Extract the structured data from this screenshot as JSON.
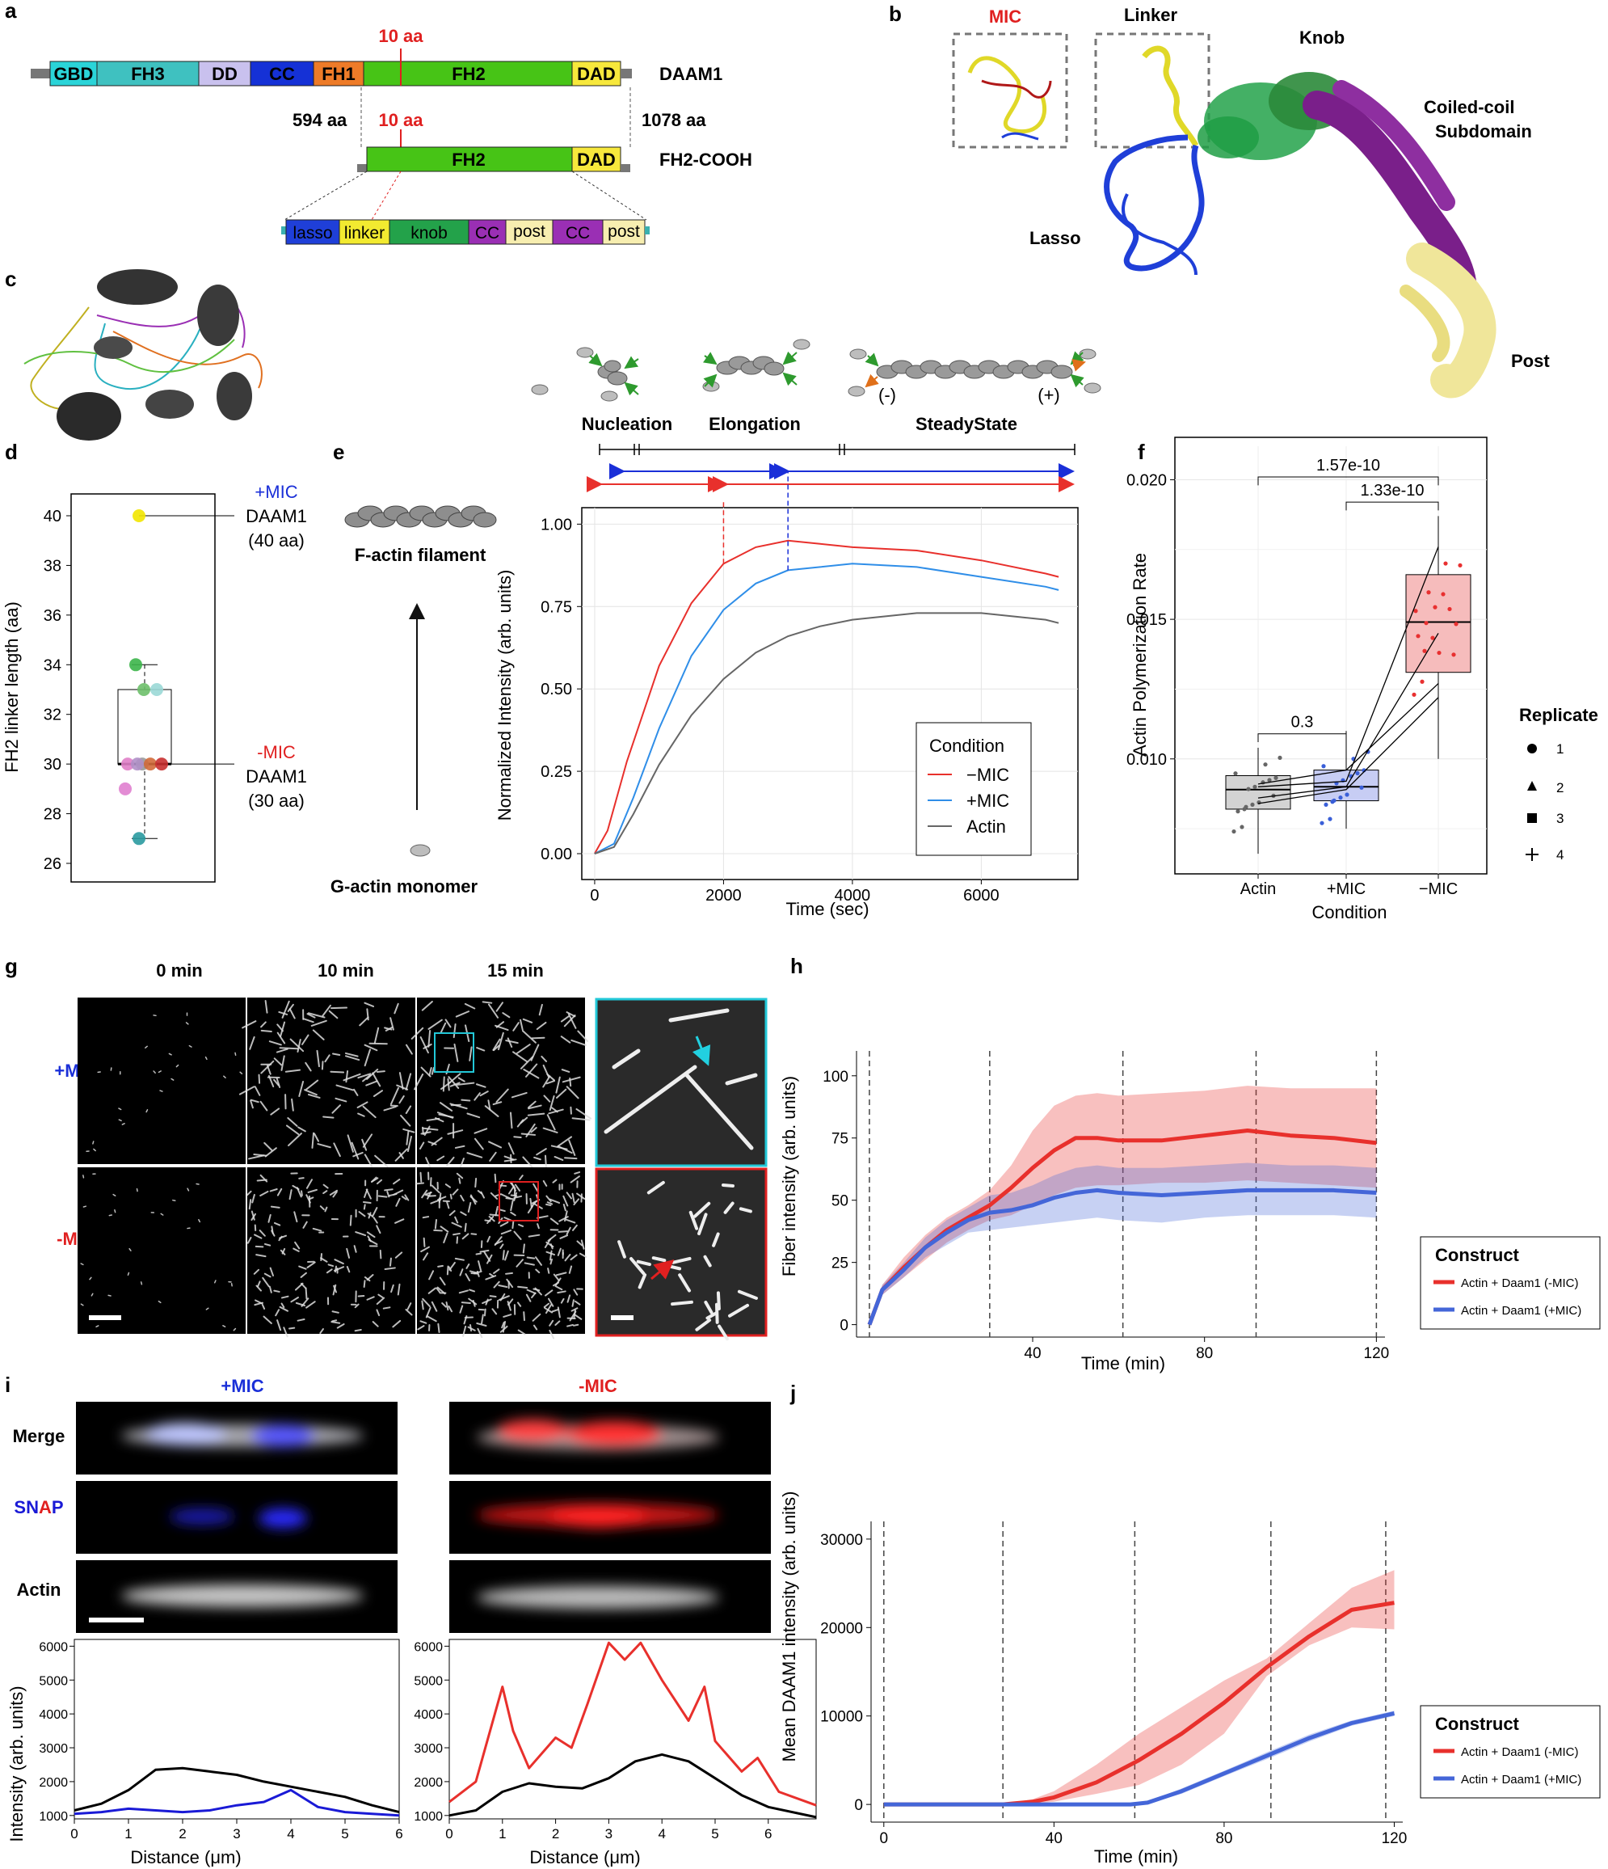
{
  "panel_labels": {
    "a": "a",
    "b": "b",
    "c": "c",
    "d": "d",
    "e": "e",
    "f": "f",
    "g": "g",
    "h": "h",
    "i": "i",
    "j": "j"
  },
  "panel_a": {
    "domains": [
      "GBD",
      "FH3",
      "DD",
      "CC",
      "FH1",
      "FH2",
      "DAD"
    ],
    "construct_full": "DAAM1",
    "construct_fh2": "FH2-COOH",
    "start_aa": "594 aa",
    "end_aa": "1078 aa",
    "insert_label": "10 aa",
    "fh2_domains": [
      "FH2",
      "DAD"
    ],
    "sub_domains": [
      "lasso",
      "linker",
      "knob",
      "CC",
      "post",
      "CC",
      "post"
    ],
    "colors": {
      "GBD": "#2ad4d8",
      "FH3": "#3fc1c0",
      "DD": "#c9c1ee",
      "CC_blue": "#1531d6",
      "FH1": "#ee7b28",
      "FH2": "#47c416",
      "DAD": "#f7e83c",
      "lasso": "#1f3fd8",
      "linker": "#f2ea30",
      "knob": "#23a24a",
      "CC_purple": "#9a2fb4",
      "post": "#f7eeb0",
      "insert": "#e02020"
    }
  },
  "panel_b": {
    "labels": {
      "mic": "MIC",
      "linker": "Linker",
      "knob": "Knob",
      "coiled": "Coiled-coil",
      "subdomain": "Subdomain",
      "lasso": "Lasso",
      "post": "Post"
    }
  },
  "panel_d": {
    "ylabel": "FH2 linker length (aa)",
    "yticks": [
      "26",
      "28",
      "30",
      "32",
      "34",
      "36",
      "38",
      "40"
    ],
    "plus_mic": "+MIC",
    "minus_mic": "-MIC",
    "daam": "DAAM1",
    "len40": "(40 aa)",
    "len30": "(30 aa)"
  },
  "panel_e": {
    "stages": [
      "Nucleation",
      "Elongation",
      "SteadyState"
    ],
    "f_actin": "F-actin filament",
    "g_actin": "G-actin monomer",
    "minus_end": "(-)",
    "plus_end": "(+)",
    "ylabel": "Normalized Intensity (arb. units)",
    "xlabel": "Time (sec)",
    "yticks": [
      "0.00",
      "0.25",
      "0.50",
      "0.75",
      "1.00"
    ],
    "xticks": [
      "0",
      "2000",
      "4000",
      "6000"
    ],
    "legend_title": "Condition",
    "legend": [
      "−MIC",
      "+MIC",
      "Actin"
    ]
  },
  "panel_f": {
    "ylabel": "Actin Polymerization Rate",
    "xlabel": "Condition",
    "categories": [
      "Actin",
      "+MIC",
      "−MIC"
    ],
    "yticks": [
      "0.010",
      "0.015",
      "0.020"
    ],
    "pvals": [
      "1.57e-10",
      "1.33e-10",
      "0.3"
    ],
    "legend_title": "Replicate",
    "replicates": [
      "1",
      "2",
      "3",
      "4"
    ]
  },
  "panel_g": {
    "cols": [
      "0 min",
      "10 min",
      "15 min"
    ],
    "rows": [
      "+MIC",
      "-MIC"
    ]
  },
  "panel_h": {
    "ylabel": "Fiber intensity (arb. units)",
    "xlabel": "Time (min)",
    "yticks": [
      "0",
      "25",
      "50",
      "75",
      "100"
    ],
    "xticks": [
      "40",
      "80",
      "120"
    ],
    "legend_title": "Construct",
    "legend": [
      "Actin + Daam1 (-MIC)",
      "Actin + Daam1 (+MIC)"
    ]
  },
  "panel_i": {
    "cols": [
      "+MIC",
      "-MIC"
    ],
    "rows": [
      "Merge",
      "SNAP",
      "Actin"
    ],
    "ylabel": "Intensity (arb. units)",
    "xlabel": "Distance (μm)",
    "yticks": [
      "1000",
      "2000",
      "3000",
      "4000",
      "5000",
      "6000"
    ],
    "xticks_left": [
      "0",
      "1",
      "2",
      "3",
      "4",
      "5",
      "6"
    ],
    "xticks_right": [
      "0",
      "1",
      "2",
      "3",
      "4",
      "5",
      "6"
    ]
  },
  "panel_j": {
    "ylabel": "Mean DAAM1 intensity (arb. units)",
    "xlabel": "Time (min)",
    "yticks": [
      "0",
      "10000",
      "20000",
      "30000"
    ],
    "xticks": [
      "0",
      "40",
      "80",
      "120"
    ],
    "legend_title": "Construct",
    "legend": [
      "Actin + Daam1 (-MIC)",
      "Actin + Daam1 (+MIC)"
    ]
  },
  "chart_data": [
    {
      "type": "line",
      "panel": "e",
      "xlabel": "Time (sec)",
      "ylabel": "Normalized Intensity (arb. units)",
      "ylim": [
        0,
        1.05
      ],
      "xlim": [
        -200,
        7500
      ],
      "series": [
        {
          "name": "−MIC",
          "color": "#e8302c",
          "x": [
            0,
            200,
            500,
            1000,
            1500,
            2000,
            2500,
            3000,
            3500,
            4000,
            5000,
            6000,
            7000,
            7200
          ],
          "values": [
            0,
            0.07,
            0.28,
            0.57,
            0.76,
            0.88,
            0.93,
            0.95,
            0.94,
            0.93,
            0.92,
            0.89,
            0.85,
            0.84
          ]
        },
        {
          "name": "+MIC",
          "color": "#2f8ee8",
          "x": [
            0,
            300,
            600,
            1000,
            1500,
            2000,
            2500,
            3000,
            3500,
            4000,
            5000,
            6000,
            7000,
            7200
          ],
          "values": [
            0,
            0.03,
            0.17,
            0.38,
            0.6,
            0.74,
            0.82,
            0.86,
            0.87,
            0.88,
            0.87,
            0.84,
            0.81,
            0.8
          ]
        },
        {
          "name": "Actin",
          "color": "#666666",
          "x": [
            0,
            300,
            600,
            1000,
            1500,
            2000,
            2500,
            3000,
            3500,
            4000,
            5000,
            6000,
            7000,
            7200
          ],
          "values": [
            0,
            0.02,
            0.12,
            0.27,
            0.42,
            0.53,
            0.61,
            0.66,
            0.69,
            0.71,
            0.73,
            0.73,
            0.71,
            0.7
          ]
        }
      ]
    },
    {
      "type": "line",
      "panel": "h",
      "xlabel": "Time (min)",
      "ylabel": "Fiber intensity (arb. units)",
      "ylim": [
        -5,
        110
      ],
      "xlim": [
        -1,
        122
      ],
      "series": [
        {
          "name": "Actin + Daam1 (-MIC)",
          "color": "#e8302c",
          "x": [
            2,
            5,
            10,
            15,
            20,
            25,
            30,
            35,
            40,
            45,
            50,
            55,
            60,
            70,
            80,
            90,
            100,
            110,
            120
          ],
          "values": [
            0,
            14,
            23,
            31,
            38,
            43,
            48,
            55,
            63,
            70,
            75,
            75,
            74,
            74,
            76,
            78,
            76,
            75,
            73
          ],
          "lower": [
            0,
            12,
            19,
            26,
            33,
            38,
            42,
            44,
            48,
            52,
            55,
            56,
            56,
            57,
            57,
            58,
            57,
            56,
            55
          ],
          "upper": [
            0,
            16,
            27,
            36,
            43,
            48,
            54,
            64,
            78,
            88,
            92,
            93,
            92,
            93,
            94,
            96,
            95,
            95,
            95
          ]
        },
        {
          "name": "Actin + Daam1 (+MIC)",
          "color": "#4466d8",
          "x": [
            2,
            5,
            10,
            15,
            20,
            25,
            30,
            35,
            40,
            45,
            50,
            55,
            60,
            70,
            80,
            90,
            100,
            110,
            120
          ],
          "values": [
            0,
            14,
            22,
            31,
            37,
            42,
            45,
            46,
            48,
            51,
            53,
            54,
            53,
            52,
            53,
            54,
            54,
            54,
            53
          ],
          "lower": [
            0,
            12,
            19,
            27,
            32,
            37,
            38,
            39,
            40,
            41,
            42,
            43,
            42,
            41,
            43,
            44,
            44,
            44,
            43
          ],
          "upper": [
            0,
            16,
            25,
            35,
            42,
            47,
            52,
            53,
            56,
            60,
            63,
            64,
            63,
            63,
            64,
            65,
            64,
            64,
            63
          ]
        }
      ]
    },
    {
      "type": "line",
      "panel": "j",
      "xlabel": "Time (min)",
      "ylabel": "Mean DAAM1 intensity (arb. units)",
      "ylim": [
        -2000,
        32000
      ],
      "xlim": [
        -3,
        122
      ],
      "series": [
        {
          "name": "Actin + Daam1 (-MIC)",
          "color": "#e8302c",
          "x": [
            0,
            28,
            35,
            40,
            50,
            60,
            70,
            80,
            90,
            100,
            110,
            120
          ],
          "values": [
            0,
            0,
            300,
            800,
            2500,
            5000,
            8000,
            11500,
            15500,
            19000,
            22000,
            22800
          ],
          "lower": [
            0,
            0,
            100,
            300,
            1200,
            2200,
            4500,
            8000,
            14500,
            18000,
            20000,
            19800
          ],
          "upper": [
            0,
            0,
            600,
            1500,
            4500,
            8000,
            11000,
            14000,
            16500,
            20500,
            24500,
            26500
          ]
        },
        {
          "name": "Actin + Daam1 (+MIC)",
          "color": "#4466d8",
          "x": [
            0,
            58,
            62,
            70,
            80,
            90,
            100,
            110,
            120
          ],
          "values": [
            0,
            0,
            200,
            1500,
            3500,
            5500,
            7500,
            9200,
            10300
          ],
          "lower": [
            0,
            0,
            100,
            1200,
            3200,
            5100,
            7100,
            8900,
            10000
          ],
          "upper": [
            0,
            0,
            300,
            1800,
            3800,
            5900,
            7900,
            9500,
            10600
          ]
        }
      ]
    },
    {
      "type": "line",
      "panel": "i-left",
      "xlabel": "Distance (μm)",
      "ylabel": "Intensity (arb. units)",
      "ylim": [
        900,
        6200
      ],
      "xlim": [
        0,
        6
      ],
      "series": [
        {
          "name": "",
          "color": "#000000",
          "x": [
            0,
            0.5,
            1,
            1.5,
            2,
            2.5,
            3,
            3.5,
            4,
            4.5,
            5,
            5.5,
            6
          ],
          "values": [
            1150,
            1350,
            1750,
            2350,
            2400,
            2300,
            2200,
            2000,
            1850,
            1700,
            1550,
            1300,
            1100
          ]
        },
        {
          "name": "",
          "color": "#1a1ad6",
          "x": [
            0,
            0.5,
            1,
            1.5,
            2,
            2.5,
            3,
            3.5,
            4,
            4.5,
            5,
            5.5,
            6
          ],
          "values": [
            1050,
            1100,
            1200,
            1150,
            1100,
            1150,
            1300,
            1400,
            1750,
            1250,
            1100,
            1050,
            1000
          ]
        }
      ]
    },
    {
      "type": "line",
      "panel": "i-right",
      "xlabel": "Distance (μm)",
      "ylabel": "",
      "ylim": [
        900,
        6200
      ],
      "xlim": [
        0,
        6.9
      ],
      "series": [
        {
          "name": "",
          "color": "#e8302c",
          "x": [
            0,
            0.5,
            1,
            1.2,
            1.5,
            2,
            2.3,
            2.6,
            3,
            3.3,
            3.6,
            4,
            4.5,
            4.8,
            5,
            5.5,
            5.8,
            6.2,
            6.9
          ],
          "values": [
            1400,
            2000,
            4800,
            3500,
            2400,
            3300,
            3000,
            4300,
            6100,
            5600,
            6100,
            5000,
            3800,
            4800,
            3200,
            2300,
            2700,
            1700,
            1300
          ]
        },
        {
          "name": "",
          "color": "#000000",
          "x": [
            0,
            0.5,
            1,
            1.5,
            2,
            2.5,
            3,
            3.5,
            4,
            4.5,
            5,
            5.5,
            6,
            6.9
          ],
          "values": [
            1000,
            1150,
            1700,
            1950,
            1850,
            1800,
            2100,
            2600,
            2800,
            2600,
            2100,
            1600,
            1250,
            950
          ]
        }
      ]
    },
    {
      "type": "scatter",
      "panel": "d",
      "ylabel": "FH2 linker length (aa)",
      "ylim": [
        26,
        41
      ],
      "values": [
        40,
        34,
        33,
        33,
        30,
        30,
        30,
        30,
        30,
        29,
        27
      ],
      "colors": [
        "#f2e600",
        "#3cb54a",
        "#6dbf6a",
        "#9ad8d6",
        "#e080c8",
        "#9a9a9a",
        "#b090c8",
        "#d26a3a",
        "#c83030",
        "#e07fcf",
        "#2a9aa0"
      ]
    },
    {
      "type": "bar",
      "panel": "f",
      "categories": [
        "Actin",
        "+MIC",
        "−MIC"
      ],
      "ylabel": "Actin Polymerization Rate",
      "ylim": [
        0.006,
        0.021
      ],
      "box": [
        {
          "q1": 0.0082,
          "median": 0.0089,
          "q3": 0.0094,
          "lo": 0.0066,
          "hi": 0.0104
        },
        {
          "q1": 0.0085,
          "median": 0.009,
          "q3": 0.0096,
          "lo": 0.0075,
          "hi": 0.011
        },
        {
          "q1": 0.0131,
          "median": 0.0149,
          "q3": 0.0166,
          "lo": 0.01,
          "hi": 0.0187
        }
      ]
    }
  ]
}
